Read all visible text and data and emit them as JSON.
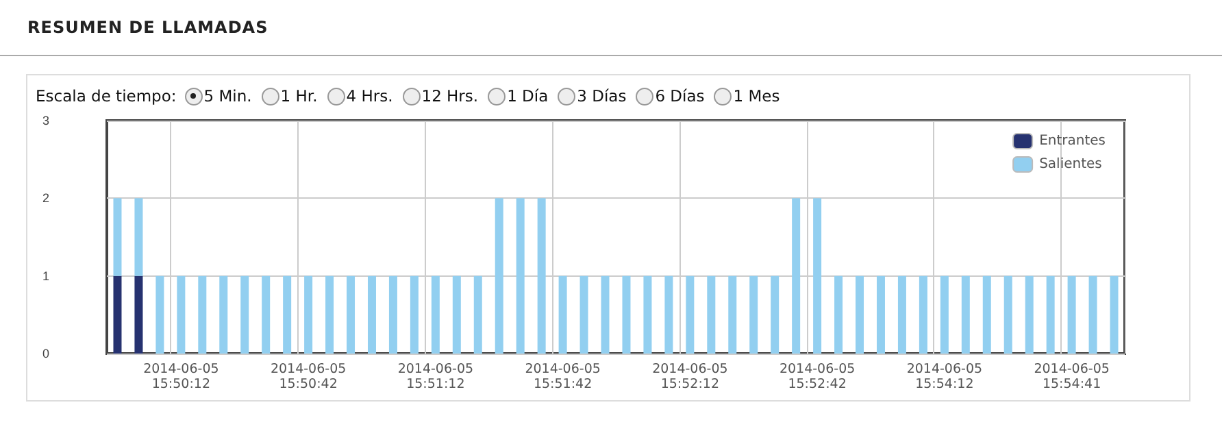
{
  "chart_data": {
    "type": "bar",
    "title": "RESUMEN DE LLAMADAS",
    "subtitle": "Escala de tiempo:",
    "annotations": [
      "5 Min.",
      "1 Hr.",
      "4 Hrs.",
      "12 Hrs.",
      "1 Día",
      "3 Días",
      "6 Días",
      "1 Mes"
    ],
    "categories": [
      null,
      null,
      null,
      "2014-06-05 15:50:12",
      null,
      null,
      null,
      null,
      null,
      "2014-06-05 15:50:42",
      null,
      null,
      null,
      null,
      null,
      "2014-06-05 15:51:12",
      null,
      null,
      null,
      null,
      null,
      "2014-06-05 15:51:42",
      null,
      null,
      null,
      null,
      null,
      "2014-06-05 15:52:12",
      null,
      null,
      null,
      null,
      null,
      "2014-06-05 15:52:42",
      null,
      null,
      null,
      null,
      null,
      "2014-06-05 15:54:12",
      null,
      null,
      null,
      null,
      null,
      "2014-06-05 15:54:41",
      null,
      null
    ],
    "stacked": true,
    "series": [
      {
        "name": "Entrantes",
        "color": "#263270",
        "values": [
          1,
          1,
          0,
          0,
          0,
          0,
          0,
          0,
          0,
          0,
          0,
          0,
          0,
          0,
          0,
          0,
          0,
          0,
          0,
          0,
          0,
          0,
          0,
          0,
          0,
          0,
          0,
          0,
          0,
          0,
          0,
          0,
          0,
          0,
          0,
          0,
          0,
          0,
          0,
          0,
          0,
          0,
          0,
          0,
          0,
          0,
          0,
          0
        ]
      },
      {
        "name": "Salientes",
        "color": "#92cff0",
        "values": [
          1,
          1,
          1,
          1,
          1,
          1,
          1,
          1,
          1,
          1,
          1,
          1,
          1,
          1,
          1,
          1,
          1,
          1,
          2,
          2,
          2,
          1,
          1,
          1,
          1,
          1,
          1,
          1,
          1,
          1,
          1,
          1,
          2,
          2,
          1,
          1,
          1,
          1,
          1,
          1,
          1,
          1,
          1,
          1,
          1,
          1,
          1,
          1
        ]
      }
    ],
    "ylim": [
      0,
      3
    ],
    "yticks": [
      0,
      1,
      2,
      3
    ],
    "grid": true,
    "legend": "top right"
  }
}
